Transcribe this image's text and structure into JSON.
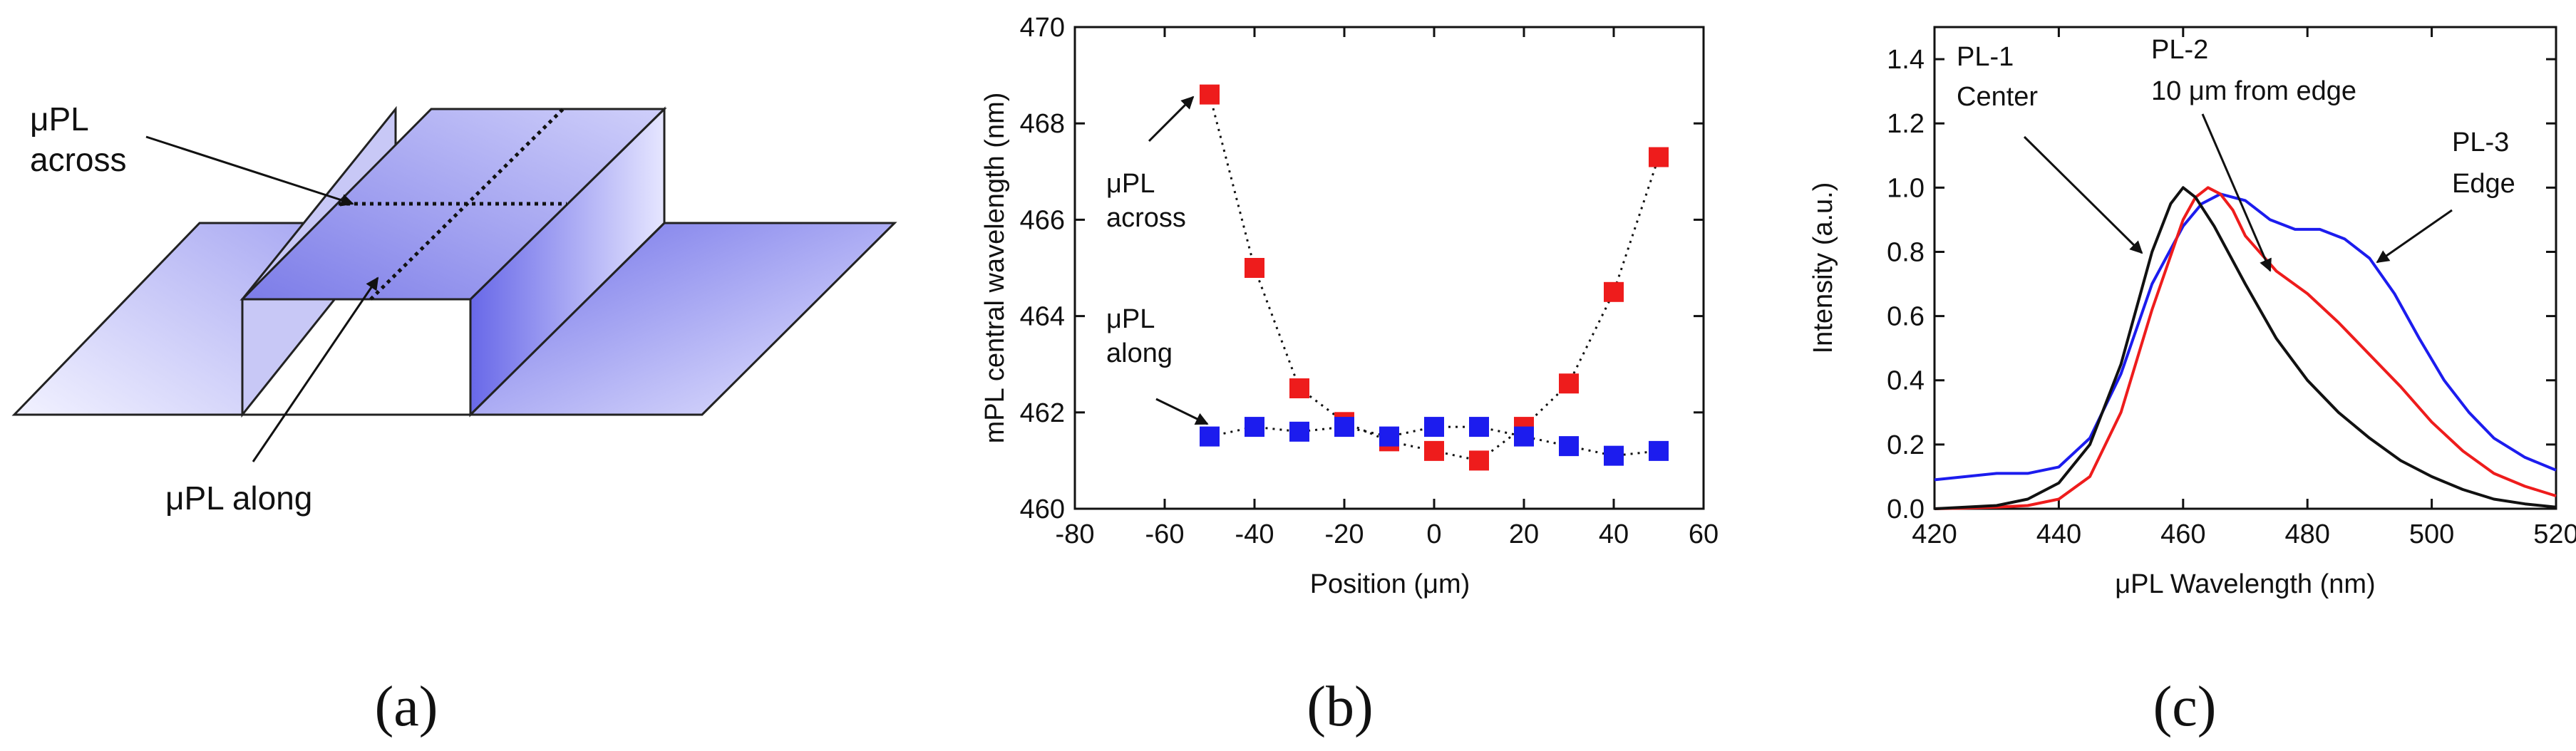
{
  "panels": {
    "a": {
      "caption": "(a)",
      "label_across_1": "μPL",
      "label_across_2": "across",
      "label_along": "μPL along"
    },
    "b": {
      "caption": "(b)"
    },
    "c": {
      "caption": "(c)"
    }
  },
  "colors": {
    "red": "#ee1c1c",
    "blue": "#1c1cee",
    "black": "#111111",
    "ridge_face": "#8080ee",
    "ridge_light": "#e8e8ff"
  },
  "chart_data": [
    {
      "type": "scatter",
      "xlabel": "Position (μm)",
      "ylabel": "mPL central wavelength (nm)",
      "xlim": [
        -80,
        60
      ],
      "ylim": [
        460,
        470
      ],
      "xticks": [
        -80,
        -60,
        -40,
        -20,
        0,
        20,
        40,
        60
      ],
      "yticks": [
        460,
        462,
        464,
        466,
        468,
        470
      ],
      "annotations": [
        {
          "line1": "μPL",
          "line2": "across"
        },
        {
          "line1": "μPL",
          "line2": "along"
        }
      ],
      "series": [
        {
          "color": "#ee1c1c",
          "x": [
            -50,
            -40,
            -30,
            -20,
            -10,
            0,
            10,
            20,
            30,
            40,
            50
          ],
          "y": [
            468.6,
            465.0,
            462.5,
            461.8,
            461.4,
            461.2,
            461.0,
            461.7,
            462.6,
            464.5,
            467.3
          ]
        },
        {
          "color": "#1c1cee",
          "x": [
            -50,
            -40,
            -30,
            -20,
            -10,
            0,
            10,
            20,
            30,
            40,
            50
          ],
          "y": [
            461.5,
            461.7,
            461.6,
            461.7,
            461.5,
            461.7,
            461.7,
            461.5,
            461.3,
            461.1,
            461.2
          ]
        }
      ]
    },
    {
      "type": "line",
      "xlabel": "μPL Wavelength (nm)",
      "ylabel": "Intensity (a.u.)",
      "xlim": [
        420,
        520
      ],
      "ylim": [
        0,
        1.5
      ],
      "xticks": [
        420,
        440,
        460,
        480,
        500,
        520
      ],
      "yticks": [
        0.0,
        0.2,
        0.4,
        0.6,
        0.8,
        1.0,
        1.2,
        1.4
      ],
      "ytick_labels": [
        "0.0",
        "0.2",
        "0.4",
        "0.6",
        "0.8",
        "1.0",
        "1.2",
        "1.4"
      ],
      "annotations": [
        {
          "line1": "PL-1",
          "line2": "Center"
        },
        {
          "line1": "PL-2",
          "line2": "10 μm from edge"
        },
        {
          "line1": "PL-3",
          "line2": "Edge"
        }
      ],
      "series": [
        {
          "color": "#111111",
          "x": [
            420,
            425,
            430,
            435,
            440,
            445,
            450,
            455,
            458,
            460,
            462,
            465,
            470,
            475,
            480,
            485,
            490,
            495,
            500,
            505,
            510,
            515,
            520
          ],
          "y": [
            0.0,
            0.005,
            0.01,
            0.03,
            0.08,
            0.2,
            0.45,
            0.8,
            0.95,
            1.0,
            0.97,
            0.88,
            0.7,
            0.53,
            0.4,
            0.3,
            0.22,
            0.15,
            0.1,
            0.06,
            0.03,
            0.015,
            0.005
          ]
        },
        {
          "color": "#ee1c1c",
          "x": [
            420,
            425,
            430,
            435,
            440,
            445,
            450,
            455,
            460,
            462,
            464,
            466,
            468,
            470,
            475,
            480,
            485,
            490,
            495,
            500,
            505,
            510,
            515,
            520
          ],
          "y": [
            0.0,
            0.002,
            0.005,
            0.01,
            0.03,
            0.1,
            0.3,
            0.62,
            0.9,
            0.97,
            1.0,
            0.98,
            0.93,
            0.85,
            0.74,
            0.67,
            0.58,
            0.48,
            0.38,
            0.27,
            0.18,
            0.11,
            0.07,
            0.04
          ]
        },
        {
          "color": "#1c1cee",
          "x": [
            420,
            425,
            430,
            435,
            440,
            445,
            450,
            455,
            460,
            463,
            466,
            470,
            474,
            478,
            482,
            486,
            490,
            494,
            498,
            502,
            506,
            510,
            515,
            520
          ],
          "y": [
            0.09,
            0.1,
            0.11,
            0.11,
            0.13,
            0.22,
            0.42,
            0.7,
            0.88,
            0.95,
            0.98,
            0.96,
            0.9,
            0.87,
            0.87,
            0.84,
            0.78,
            0.67,
            0.53,
            0.4,
            0.3,
            0.22,
            0.16,
            0.12
          ]
        }
      ]
    }
  ]
}
